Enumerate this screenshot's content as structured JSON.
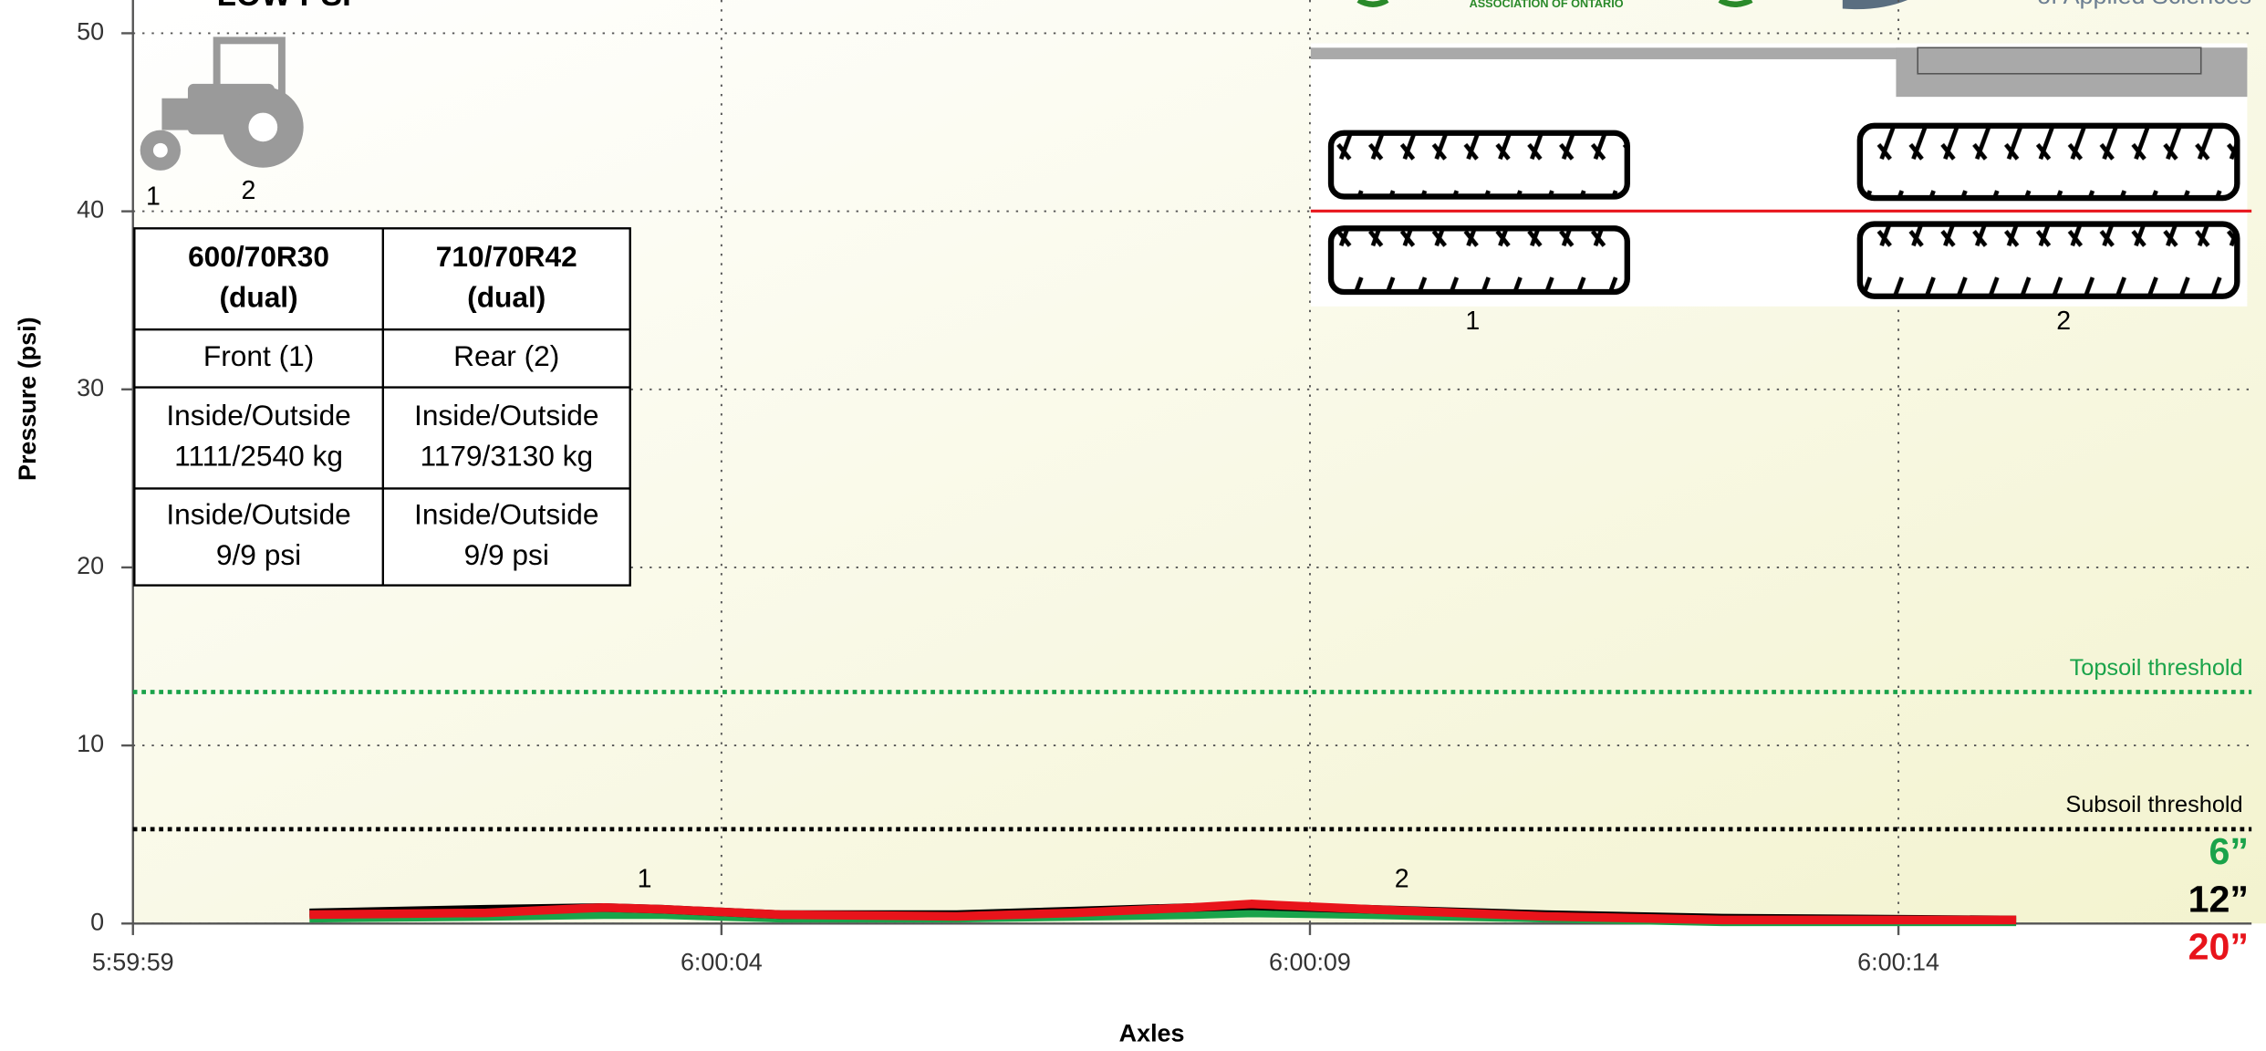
{
  "title": "LOW PSI",
  "logos": {
    "association": "ASSOCIATION OF ONTARIO",
    "university": "of Applied Sciences"
  },
  "chart_data": {
    "type": "line",
    "y_label": "Pressure (psi)",
    "x_label": "Axles",
    "xlim": [
      0,
      18
    ],
    "xticks": [
      {
        "value": 0,
        "label": "5:59:59"
      },
      {
        "value": 5,
        "label": "6:00:04"
      },
      {
        "value": 10,
        "label": "6:00:09"
      },
      {
        "value": 15,
        "label": "6:00:14"
      }
    ],
    "ylim": [
      0,
      50
    ],
    "yticks": [
      0,
      10,
      20,
      30,
      40,
      50
    ],
    "grid": true,
    "x": [
      1.5,
      3,
      4,
      4.5,
      5.5,
      7,
      8,
      9,
      9.5,
      10.5,
      12,
      13.5,
      16
    ],
    "series": [
      {
        "name": "6”",
        "color": "#1aa34a",
        "values": [
          0.3,
          0.4,
          0.5,
          0.5,
          0.3,
          0.3,
          0.4,
          0.5,
          0.6,
          0.5,
          0.3,
          0.1,
          0.1
        ]
      },
      {
        "name": "12”",
        "color": "#000000",
        "values": [
          0.6,
          0.8,
          0.9,
          0.8,
          0.5,
          0.5,
          0.7,
          0.9,
          1.0,
          0.8,
          0.5,
          0.3,
          0.2
        ]
      },
      {
        "name": "20”",
        "color": "#e8141b",
        "values": [
          0.5,
          0.6,
          0.9,
          0.8,
          0.5,
          0.4,
          0.6,
          0.9,
          1.1,
          0.8,
          0.4,
          0.2,
          0.2
        ]
      }
    ],
    "thresholds": [
      {
        "label": "Topsoil threshold",
        "value": 13,
        "color": "#1aa34a"
      },
      {
        "label": "Subsoil threshold",
        "value": 5.3,
        "color": "#000000"
      }
    ],
    "annotations": [
      "1",
      "2"
    ]
  },
  "tractor": {
    "axle_labels": [
      "1",
      "2"
    ]
  },
  "tire_diagram": {
    "axle_labels": [
      "1",
      "2"
    ]
  },
  "table": {
    "rows": [
      [
        [
          "600/70R30",
          "(dual)"
        ],
        [
          "710/70R42",
          "(dual)"
        ]
      ],
      [
        [
          "Front (1)"
        ],
        [
          "Rear (2)"
        ]
      ],
      [
        [
          "Inside/Outside",
          "1111/2540 kg"
        ],
        [
          "Inside/Outside",
          "1179/3130 kg"
        ]
      ],
      [
        [
          "Inside/Outside",
          "9/9 psi"
        ],
        [
          "Inside/Outside",
          "9/9 psi"
        ]
      ]
    ]
  }
}
